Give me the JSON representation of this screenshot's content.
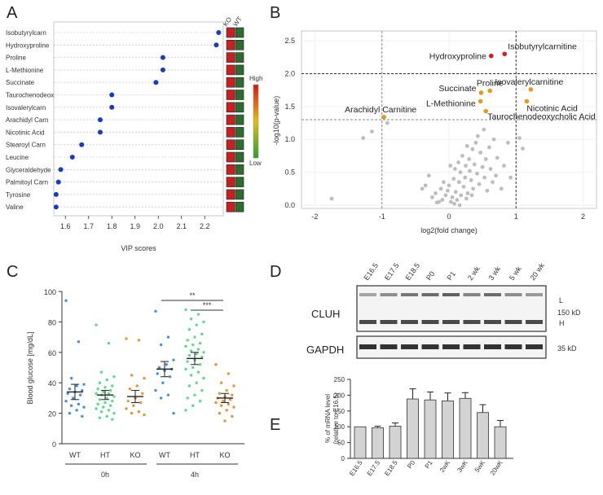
{
  "panel_letters": [
    "A",
    "B",
    "C",
    "D",
    "E"
  ],
  "colors": {
    "dot_blue": "#1a3bbd",
    "red": "#d91a1a",
    "orange": "#e69b1a",
    "grey": "#bdbdbd",
    "wt_blue": "#4a90d9",
    "ht_green": "#5fd98a",
    "ko_orange": "#e6953a"
  },
  "chart_data": [
    {
      "panel": "A",
      "type": "scatter",
      "xlabel": "VIP scores",
      "x_ticks": [
        "1.6",
        "1.7",
        "1.8",
        "1.9",
        "2.0",
        "2.1",
        "2.2"
      ],
      "xlim": [
        1.55,
        2.28
      ],
      "categories": [
        "Isobutyrylcarn",
        "Hydroxyproline",
        "Proline",
        "L-Methionine",
        "Succinate",
        "Taurochenodeox",
        "Isovalerylcarn",
        "Arachidyl Carn",
        "Nicotinic Acid",
        "Stearoyl Carn",
        "Leucine",
        "Glyceraldehyde",
        "Palmitoyl Carn",
        "Tyrosine",
        "Valine"
      ],
      "values": [
        2.26,
        2.25,
        2.02,
        2.02,
        1.99,
        1.8,
        1.8,
        1.75,
        1.75,
        1.67,
        1.63,
        1.58,
        1.57,
        1.56,
        1.56
      ],
      "heatmap_columns": [
        "KO",
        "WT"
      ],
      "heatmap": [
        [
          "red",
          "green"
        ],
        [
          "red",
          "green"
        ],
        [
          "red",
          "green"
        ],
        [
          "red",
          "green"
        ],
        [
          "red",
          "green"
        ],
        [
          "red",
          "green"
        ],
        [
          "red",
          "green"
        ],
        [
          "red",
          "green"
        ],
        [
          "red",
          "green"
        ],
        [
          "red",
          "green"
        ],
        [
          "red",
          "green"
        ],
        [
          "red",
          "green"
        ],
        [
          "red",
          "green"
        ],
        [
          "red",
          "green"
        ],
        [
          "red",
          "green"
        ]
      ],
      "color_scale": {
        "high_label": "High",
        "low_label": "Low"
      }
    },
    {
      "panel": "B",
      "type": "scatter",
      "xlabel": "log2(fold change)",
      "ylabel": "-log10(p-value)",
      "x_ticks": [
        "-2",
        "-1",
        "0",
        "1",
        "2"
      ],
      "y_ticks": [
        "0.0",
        "0.5",
        "1.0",
        "1.5",
        "2.0",
        "2.5"
      ],
      "xlim": [
        -2.2,
        2.2
      ],
      "ylim": [
        -0.05,
        2.65
      ],
      "thresholds": {
        "x": [
          -1,
          1
        ],
        "y": [
          1.3,
          2.0
        ]
      },
      "labeled_points": [
        {
          "label": "Isobutyrylcarnitine",
          "x": 0.83,
          "y": 2.3,
          "color": "red"
        },
        {
          "label": "Hydroxyproline",
          "x": 0.63,
          "y": 2.27,
          "color": "red"
        },
        {
          "label": "Proline",
          "x": 0.61,
          "y": 1.74,
          "color": "orange"
        },
        {
          "label": "Isovalerylcarnitine",
          "x": 1.22,
          "y": 1.76,
          "color": "orange"
        },
        {
          "label": "Succinate",
          "x": 0.48,
          "y": 1.71,
          "color": "orange"
        },
        {
          "label": "L-Methionine",
          "x": 0.47,
          "y": 1.58,
          "color": "orange"
        },
        {
          "label": "Nicotinic Acid",
          "x": 1.16,
          "y": 1.58,
          "color": "orange"
        },
        {
          "label": "Taurochenodeoxycholic Acid",
          "x": 0.55,
          "y": 1.43,
          "color": "orange"
        },
        {
          "label": "Arachidyl Carnitine",
          "x": -0.97,
          "y": 1.34,
          "color": "orange"
        }
      ],
      "grey_points": [
        [
          -1.75,
          0.1
        ],
        [
          -1.28,
          1.02
        ],
        [
          -1.15,
          1.12
        ],
        [
          -0.92,
          1.25
        ],
        [
          -0.4,
          0.25
        ],
        [
          -0.35,
          0.3
        ],
        [
          -0.3,
          0.45
        ],
        [
          -0.25,
          0.12
        ],
        [
          -0.2,
          0.18
        ],
        [
          -0.15,
          0.05
        ],
        [
          -0.1,
          0.08
        ],
        [
          -0.05,
          0.15
        ],
        [
          -0.02,
          0.22
        ],
        [
          0.0,
          0.3
        ],
        [
          0.03,
          0.05
        ],
        [
          0.05,
          0.12
        ],
        [
          0.07,
          0.4
        ],
        [
          0.09,
          0.55
        ],
        [
          0.1,
          0.2
        ],
        [
          0.12,
          0.08
        ],
        [
          0.14,
          0.65
        ],
        [
          0.15,
          0.35
        ],
        [
          0.17,
          0.5
        ],
        [
          0.18,
          0.15
        ],
        [
          0.2,
          0.75
        ],
        [
          0.22,
          0.28
        ],
        [
          0.24,
          0.42
        ],
        [
          0.25,
          0.6
        ],
        [
          0.27,
          0.9
        ],
        [
          0.28,
          0.18
        ],
        [
          0.3,
          0.7
        ],
        [
          0.31,
          0.52
        ],
        [
          0.33,
          0.38
        ],
        [
          0.35,
          0.85
        ],
        [
          0.36,
          0.25
        ],
        [
          0.38,
          0.62
        ],
        [
          0.4,
          0.95
        ],
        [
          0.42,
          0.48
        ],
        [
          0.43,
          1.05
        ],
        [
          0.45,
          0.32
        ],
        [
          0.47,
          0.8
        ],
        [
          0.5,
          0.58
        ],
        [
          0.52,
          1.15
        ],
        [
          0.53,
          0.42
        ],
        [
          0.55,
          0.7
        ],
        [
          0.57,
          0.22
        ],
        [
          0.6,
          0.88
        ],
        [
          0.62,
          0.55
        ],
        [
          0.65,
          0.35
        ],
        [
          0.67,
          1.0
        ],
        [
          0.7,
          0.45
        ],
        [
          0.72,
          0.72
        ],
        [
          0.78,
          0.25
        ],
        [
          0.82,
          0.6
        ],
        [
          0.88,
          0.95
        ],
        [
          0.92,
          0.42
        ],
        [
          1.05,
          1.02
        ],
        [
          1.1,
          0.86
        ],
        [
          -0.08,
          0.35
        ],
        [
          -0.12,
          0.25
        ],
        [
          -0.18,
          0.04
        ],
        [
          0.02,
          0.6
        ],
        [
          0.08,
          0.02
        ],
        [
          0.16,
          0.0
        ],
        [
          0.26,
          0.1
        ],
        [
          0.34,
          0.15
        ]
      ]
    },
    {
      "panel": "C",
      "type": "scatter",
      "ylabel": "Blood glucose [mg/dL]",
      "y_ticks": [
        "0",
        "20",
        "40",
        "60",
        "80",
        "100"
      ],
      "ylim": [
        0,
        100
      ],
      "groups": [
        {
          "label": "WT",
          "time": "0h",
          "mean": 34,
          "sem": 5,
          "color": "wt_blue",
          "values": [
            94,
            67,
            43,
            39,
            38,
            36,
            35,
            34,
            33,
            32,
            30,
            28,
            26,
            25,
            24,
            22,
            20,
            18
          ]
        },
        {
          "label": "HT",
          "time": "0h",
          "mean": 32,
          "sem": 3,
          "color": "ht_green",
          "values": [
            78,
            66,
            47,
            44,
            42,
            40,
            38,
            37,
            36,
            35,
            34,
            33,
            33,
            32,
            31,
            30,
            29,
            28,
            27,
            26,
            25,
            24,
            23,
            22,
            21,
            20,
            18,
            17,
            16
          ]
        },
        {
          "label": "KO",
          "time": "0h",
          "mean": 31,
          "sem": 4,
          "color": "ko_orange",
          "values": [
            69,
            68,
            45,
            43,
            38,
            36,
            33,
            30,
            28,
            27,
            25,
            23,
            21,
            20,
            19
          ]
        },
        {
          "label": "WT",
          "time": "4h",
          "mean": 49,
          "sem": 5,
          "color": "wt_blue",
          "values": [
            87,
            70,
            65,
            55,
            52,
            50,
            49,
            48,
            46,
            44,
            40,
            35,
            32,
            30,
            20
          ]
        },
        {
          "label": "HT",
          "time": "4h",
          "mean": 56,
          "sem": 4,
          "color": "ht_green",
          "values": [
            88,
            85,
            82,
            80,
            78,
            75,
            72,
            70,
            68,
            66,
            65,
            64,
            62,
            61,
            60,
            59,
            58,
            57,
            55,
            54,
            52,
            50,
            49,
            47,
            45,
            43,
            40,
            38,
            35,
            32,
            30,
            28,
            25,
            22
          ]
        },
        {
          "label": "KO",
          "time": "4h",
          "mean": 30,
          "sem": 3,
          "color": "ko_orange",
          "values": [
            52,
            46,
            40,
            38,
            35,
            33,
            32,
            31,
            30,
            29,
            28,
            27,
            26,
            25,
            24,
            22,
            20,
            18,
            15
          ]
        }
      ],
      "time_labels": [
        "0h",
        "4h"
      ],
      "significance": [
        "**",
        "***"
      ]
    },
    {
      "panel": "E",
      "type": "bar",
      "ylabel_line1": "% of mRNA level",
      "ylabel_line2": "(relative to E16.5)",
      "y_ticks": [
        "0",
        "50",
        "100",
        "150",
        "200",
        "250"
      ],
      "ylim": [
        0,
        250
      ],
      "categories": [
        "E16.5",
        "E17.5",
        "E18.5",
        "P0",
        "P1",
        "2wK",
        "3wK",
        "5wK",
        "20wK"
      ],
      "values": [
        100,
        97,
        102,
        188,
        185,
        182,
        190,
        145,
        100
      ],
      "errors": [
        0,
        5,
        10,
        32,
        25,
        25,
        18,
        25,
        20
      ]
    }
  ],
  "blot": {
    "lanes": [
      "E16.5",
      "E17.5",
      "E18.5",
      "P0",
      "P1",
      "2 wk",
      "3 wk",
      "5 wk",
      "20 wk"
    ],
    "cluh_label": "CLUH",
    "gapdh_label": "GAPDH",
    "band_l": "L",
    "band_h": "H",
    "mw_cluh": "150 kD",
    "mw_gapdh": "35 kD"
  }
}
